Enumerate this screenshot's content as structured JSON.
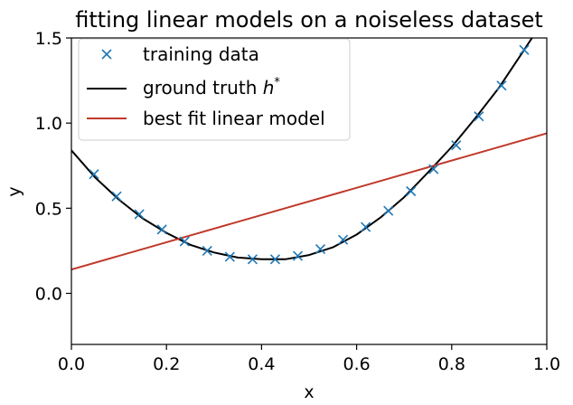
{
  "chart_data": {
    "type": "line",
    "title": "fitting linear models on a noiseless dataset",
    "xlabel": "x",
    "ylabel": "y",
    "xlim": [
      0.0,
      1.0
    ],
    "ylim": [
      -0.3,
      1.5
    ],
    "xticks": [
      "0.0",
      "0.2",
      "0.4",
      "0.6",
      "0.8",
      "1.0"
    ],
    "yticks": [
      "0.0",
      "0.5",
      "1.0",
      "1.5"
    ],
    "grid": false,
    "legend_position": "top-left",
    "legend": {
      "training": "training data",
      "truth_prefix": "ground truth ",
      "truth_symbol": "h",
      "truth_sup": "*",
      "fit": "best fit linear model"
    },
    "colors": {
      "training": "#1f77b4",
      "truth": "#000000",
      "fit": "#c0392b"
    },
    "training_data": {
      "x": [
        0.0476,
        0.0952,
        0.1429,
        0.1905,
        0.2381,
        0.2857,
        0.3333,
        0.381,
        0.4286,
        0.4762,
        0.5238,
        0.5714,
        0.619,
        0.6667,
        0.7143,
        0.7619,
        0.8095,
        0.8571,
        0.9048,
        0.9524
      ],
      "y": [
        0.7,
        0.57,
        0.465,
        0.375,
        0.305,
        0.25,
        0.215,
        0.2,
        0.2,
        0.22,
        0.26,
        0.315,
        0.39,
        0.485,
        0.6,
        0.73,
        0.87,
        1.04,
        1.22,
        1.43
      ]
    },
    "ground_truth": {
      "x": [
        0.0,
        0.05,
        0.1,
        0.15,
        0.2,
        0.25,
        0.3,
        0.35,
        0.4,
        0.45,
        0.5,
        0.55,
        0.6,
        0.65,
        0.7,
        0.75,
        0.8,
        0.85,
        0.9,
        0.95,
        0.99
      ],
      "y": [
        0.84,
        0.68,
        0.55,
        0.44,
        0.355,
        0.285,
        0.24,
        0.21,
        0.2,
        0.2,
        0.225,
        0.27,
        0.345,
        0.445,
        0.565,
        0.71,
        0.86,
        1.03,
        1.21,
        1.42,
        1.59
      ]
    },
    "best_fit_line": {
      "x": [
        0.0,
        1.0
      ],
      "y": [
        0.14,
        0.94
      ]
    }
  }
}
